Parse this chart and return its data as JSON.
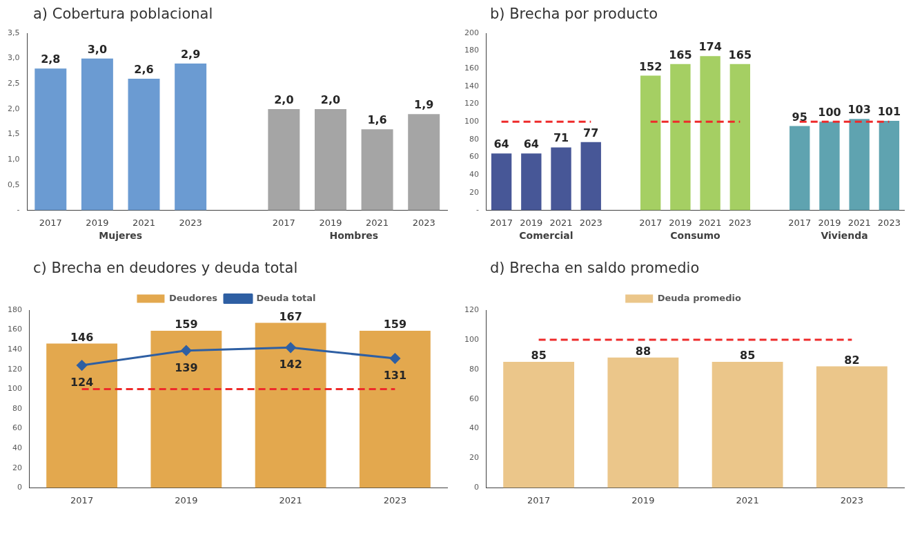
{
  "chart_data": [
    {
      "type": "bar",
      "title": "a)  Cobertura poblacional",
      "categories": [
        "2017",
        "2019",
        "2021",
        "2023",
        null,
        "2017",
        "2019",
        "2021",
        "2023"
      ],
      "series": [
        {
          "name": "Mujeres",
          "color": "#6b9bd2",
          "values": [
            2.8,
            3.0,
            2.6,
            2.9,
            null,
            null,
            null,
            null,
            null
          ],
          "value_labels": [
            "2,8",
            "3,0",
            "2,6",
            "2,9",
            null,
            null,
            null,
            null,
            null
          ]
        },
        {
          "name": "Hombres",
          "color": "#a5a5a5",
          "values": [
            null,
            null,
            null,
            null,
            null,
            2.0,
            2.0,
            1.6,
            1.9
          ],
          "value_labels": [
            null,
            null,
            null,
            null,
            null,
            "2,0",
            "2,0",
            "1,6",
            "1,9"
          ]
        }
      ],
      "ylim": [
        0,
        3.5
      ],
      "yticks": [
        {
          "value": 0,
          "label": "-"
        },
        {
          "value": 0.5,
          "label": "0,5"
        },
        {
          "value": 1,
          "label": "1,0"
        },
        {
          "value": 1.5,
          "label": "1,5"
        },
        {
          "value": 2,
          "label": "2,0"
        },
        {
          "value": 2.5,
          "label": "2,5"
        },
        {
          "value": 3,
          "label": "3,0"
        },
        {
          "value": 3.5,
          "label": "3,5"
        }
      ]
    },
    {
      "type": "bar",
      "title": "b)  Brecha por producto",
      "categories": [
        "2017",
        "2019",
        "2021",
        "2023",
        null,
        "2017",
        "2019",
        "2021",
        "2023",
        null,
        "2017",
        "2019",
        "2021",
        "2023"
      ],
      "series": [
        {
          "name": "Comercial",
          "color": "#475797",
          "values": [
            64,
            64,
            71,
            77,
            null,
            null,
            null,
            null,
            null,
            null,
            null,
            null,
            null,
            null
          ]
        },
        {
          "name": "Consumo",
          "color": "#a5cf63",
          "values": [
            null,
            null,
            null,
            null,
            null,
            152,
            165,
            174,
            165,
            null,
            null,
            null,
            null,
            null
          ]
        },
        {
          "name": "Vivienda",
          "color": "#5fa3b0",
          "values": [
            null,
            null,
            null,
            null,
            null,
            null,
            null,
            null,
            null,
            null,
            95,
            100,
            103,
            101
          ]
        }
      ],
      "ylim": [
        0,
        200
      ],
      "yticks": [
        {
          "value": 0,
          "label": "-"
        },
        20,
        40,
        60,
        80,
        100,
        120,
        140,
        160,
        180,
        200
      ],
      "data_labels": true,
      "ref_lines": [
        {
          "axis": "y",
          "value": 100,
          "color": "#ee2a2a",
          "line_style": "dashed"
        }
      ]
    },
    {
      "type": "bar",
      "title": "c)  Brecha en deudores y deuda total",
      "categories": [
        "2017",
        "2019",
        "2021",
        "2023"
      ],
      "series": [
        {
          "name": "Deudores",
          "color": "#e3a84e",
          "values": [
            146,
            159,
            167,
            159
          ]
        },
        {
          "name": "Deuda total",
          "type": "line",
          "color": "#2e5fa3",
          "values": [
            124,
            139,
            142,
            131
          ]
        }
      ],
      "ylim": [
        0,
        180
      ],
      "yticks": [
        0,
        20,
        40,
        60,
        80,
        100,
        120,
        140,
        160,
        180
      ],
      "data_labels": true,
      "legend": "top",
      "marker": "diamond",
      "line_style": "solid",
      "ref_lines": [
        {
          "axis": "y",
          "value": 100,
          "color": "#ee2a2a",
          "line_style": "dashed"
        }
      ]
    },
    {
      "type": "bar",
      "title": "d)  Brecha en saldo promedio",
      "categories": [
        "2017",
        "2019",
        "2021",
        "2023"
      ],
      "series": [
        {
          "name": "Deuda promedio",
          "color": "#ebc68a",
          "values": [
            85,
            88,
            85,
            82
          ]
        }
      ],
      "ylim": [
        0,
        120
      ],
      "yticks": [
        0,
        20,
        40,
        60,
        80,
        100,
        120
      ],
      "data_labels": true,
      "legend": "top",
      "ref_lines": [
        {
          "axis": "y",
          "value": 100,
          "color": "#ee2a2a",
          "line_style": "dashed"
        }
      ]
    }
  ]
}
